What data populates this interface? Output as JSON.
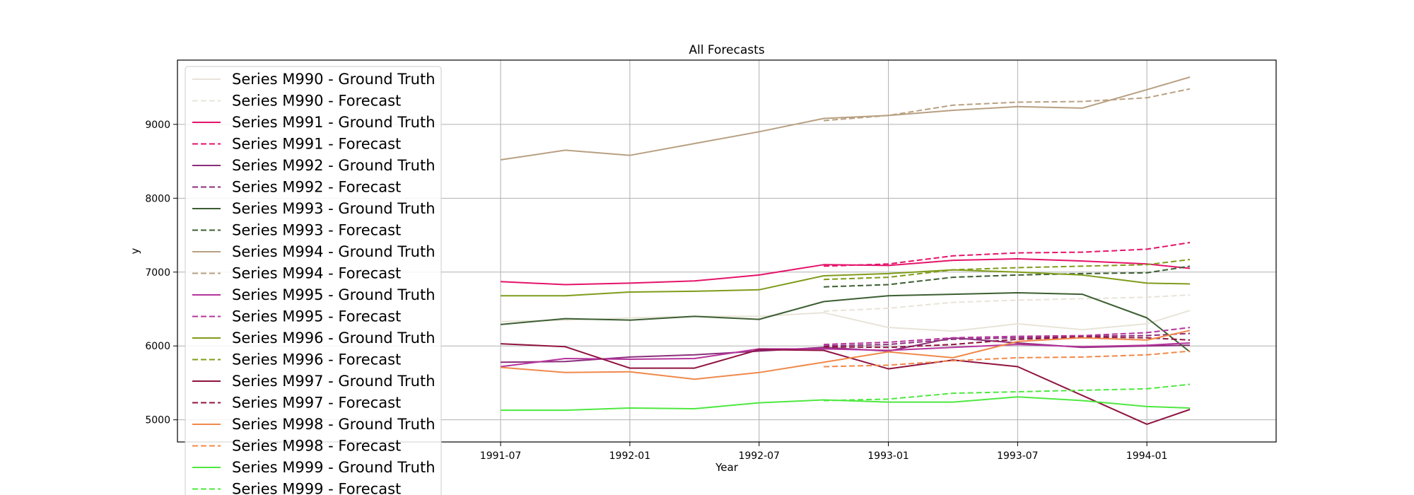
{
  "chart_data": {
    "type": "line",
    "title": "All Forecasts",
    "xlabel": "Year",
    "ylabel": "y",
    "x_ticks": [
      "1991-07",
      "1992-01",
      "1992-07",
      "1993-01",
      "1993-07",
      "1994-01"
    ],
    "y_ticks": [
      5000,
      6000,
      7000,
      8000,
      9000
    ],
    "xlim": [
      "1990-04",
      "1994-07"
    ],
    "ylim": [
      4700,
      9870
    ],
    "grid": true,
    "legend_position": "upper-left",
    "series": [
      {
        "name": "Series M990 - Ground Truth",
        "color": "#e8e4d8",
        "style": "solid",
        "x": [
          "1991-07",
          "1991-10",
          "1992-01",
          "1992-04",
          "1992-07",
          "1992-10",
          "1993-01",
          "1993-04",
          "1993-07",
          "1993-10",
          "1994-01",
          "1994-03"
        ],
        "values": [
          6330,
          6350,
          6380,
          6400,
          6400,
          6450,
          6250,
          6200,
          6300,
          6220,
          6300,
          6480
        ]
      },
      {
        "name": "Series M990 - Forecast",
        "color": "#e8e4d8",
        "style": "dashed",
        "x": [
          "1992-10",
          "1993-01",
          "1993-04",
          "1993-07",
          "1993-10",
          "1994-01",
          "1994-03"
        ],
        "values": [
          6470,
          6510,
          6590,
          6620,
          6640,
          6660,
          6690
        ]
      },
      {
        "name": "Series M991 - Ground Truth",
        "color": "#e5136a",
        "style": "solid",
        "x": [
          "1991-07",
          "1991-10",
          "1992-01",
          "1992-04",
          "1992-07",
          "1992-10",
          "1993-01",
          "1993-04",
          "1993-07",
          "1993-10",
          "1994-01",
          "1994-03"
        ],
        "values": [
          6870,
          6830,
          6850,
          6880,
          6960,
          7100,
          7090,
          7160,
          7180,
          7150,
          7110,
          7050
        ]
      },
      {
        "name": "Series M991 - Forecast",
        "color": "#e5136a",
        "style": "dashed",
        "x": [
          "1992-10",
          "1993-01",
          "1993-04",
          "1993-07",
          "1993-10",
          "1994-01",
          "1994-03"
        ],
        "values": [
          7080,
          7110,
          7220,
          7260,
          7270,
          7310,
          7400
        ]
      },
      {
        "name": "Series M992 - Ground Truth",
        "color": "#8b2e7c",
        "style": "solid",
        "x": [
          "1991-07",
          "1991-10",
          "1992-01",
          "1992-04",
          "1992-07",
          "1992-10",
          "1993-01",
          "1993-04",
          "1993-07",
          "1993-10",
          "1994-01",
          "1994-03"
        ],
        "values": [
          5780,
          5790,
          5850,
          5880,
          5930,
          5980,
          5930,
          6110,
          6040,
          5980,
          6000,
          6010
        ]
      },
      {
        "name": "Series M992 - Forecast",
        "color": "#8b2e7c",
        "style": "dashed",
        "x": [
          "1992-10",
          "1993-01",
          "1993-04",
          "1993-07",
          "1993-10",
          "1994-01",
          "1994-03"
        ],
        "values": [
          6000,
          6020,
          6090,
          6110,
          6130,
          6140,
          6170
        ]
      },
      {
        "name": "Series M993 - Ground Truth",
        "color": "#3c5e32",
        "style": "solid",
        "x": [
          "1991-07",
          "1991-10",
          "1992-01",
          "1992-04",
          "1992-07",
          "1992-10",
          "1993-01",
          "1993-04",
          "1993-07",
          "1993-10",
          "1994-01",
          "1994-03"
        ],
        "values": [
          6290,
          6370,
          6350,
          6400,
          6360,
          6600,
          6680,
          6700,
          6720,
          6700,
          6380,
          5920
        ]
      },
      {
        "name": "Series M993 - Forecast",
        "color": "#3c5e32",
        "style": "dashed",
        "x": [
          "1992-10",
          "1993-01",
          "1993-04",
          "1993-07",
          "1993-10",
          "1994-01",
          "1994-03"
        ],
        "values": [
          6800,
          6830,
          6930,
          6960,
          6980,
          6990,
          7080
        ]
      },
      {
        "name": "Series M994 - Ground Truth",
        "color": "#b8a082",
        "style": "solid",
        "x": [
          "1991-07",
          "1991-10",
          "1992-01",
          "1992-04",
          "1992-07",
          "1992-10",
          "1993-01",
          "1993-04",
          "1993-07",
          "1993-10",
          "1994-01",
          "1994-03"
        ],
        "values": [
          8520,
          8650,
          8580,
          8740,
          8900,
          9080,
          9120,
          9190,
          9240,
          9220,
          9470,
          9640
        ]
      },
      {
        "name": "Series M994 - Forecast",
        "color": "#b8a082",
        "style": "dashed",
        "x": [
          "1992-10",
          "1993-01",
          "1993-04",
          "1993-07",
          "1993-10",
          "1994-01",
          "1994-03"
        ],
        "values": [
          9050,
          9120,
          9260,
          9300,
          9310,
          9360,
          9480
        ]
      },
      {
        "name": "Series M995 - Ground Truth",
        "color": "#b5349c",
        "style": "solid",
        "x": [
          "1991-07",
          "1991-10",
          "1992-01",
          "1992-04",
          "1992-07",
          "1992-10",
          "1993-01",
          "1993-04",
          "1993-07",
          "1993-10",
          "1994-01",
          "1994-03"
        ],
        "values": [
          5720,
          5830,
          5820,
          5830,
          5960,
          5960,
          5940,
          5980,
          6020,
          5990,
          6010,
          6040
        ]
      },
      {
        "name": "Series M995 - Forecast",
        "color": "#b5349c",
        "style": "dashed",
        "x": [
          "1992-10",
          "1993-01",
          "1993-04",
          "1993-07",
          "1993-10",
          "1994-01",
          "1994-03"
        ],
        "values": [
          6020,
          6050,
          6110,
          6130,
          6140,
          6180,
          6250
        ]
      },
      {
        "name": "Series M996 - Ground Truth",
        "color": "#7f9c1b",
        "style": "solid",
        "x": [
          "1991-07",
          "1991-10",
          "1992-01",
          "1992-04",
          "1992-07",
          "1992-10",
          "1993-01",
          "1993-04",
          "1993-07",
          "1993-10",
          "1994-01",
          "1994-03"
        ],
        "values": [
          6680,
          6680,
          6730,
          6740,
          6760,
          6950,
          6980,
          7030,
          7000,
          6960,
          6850,
          6840
        ]
      },
      {
        "name": "Series M996 - Forecast",
        "color": "#7f9c1b",
        "style": "dashed",
        "x": [
          "1992-10",
          "1993-01",
          "1993-04",
          "1993-07",
          "1993-10",
          "1994-01",
          "1994-03"
        ],
        "values": [
          6900,
          6930,
          7030,
          7060,
          7080,
          7100,
          7170
        ]
      },
      {
        "name": "Series M997 - Ground Truth",
        "color": "#8f1340",
        "style": "solid",
        "x": [
          "1991-07",
          "1991-10",
          "1992-01",
          "1992-04",
          "1992-07",
          "1992-10",
          "1993-01",
          "1993-04",
          "1993-07",
          "1993-10",
          "1994-01",
          "1994-03"
        ],
        "values": [
          6030,
          5990,
          5700,
          5700,
          5950,
          5940,
          5690,
          5810,
          5720,
          5330,
          4940,
          5140
        ]
      },
      {
        "name": "Series M997 - Forecast",
        "color": "#8f1340",
        "style": "dashed",
        "x": [
          "1992-10",
          "1993-01",
          "1993-04",
          "1993-07",
          "1993-10",
          "1994-01",
          "1994-03"
        ],
        "values": [
          5990,
          5980,
          6020,
          6090,
          6120,
          6110,
          6080
        ]
      },
      {
        "name": "Series M998 - Ground Truth",
        "color": "#f0894a",
        "style": "solid",
        "x": [
          "1991-07",
          "1991-10",
          "1992-01",
          "1992-04",
          "1992-07",
          "1992-10",
          "1993-01",
          "1993-04",
          "1993-07",
          "1993-10",
          "1994-01",
          "1994-03"
        ],
        "values": [
          5710,
          5640,
          5650,
          5550,
          5640,
          5780,
          5920,
          5840,
          6060,
          6110,
          6080,
          6210
        ]
      },
      {
        "name": "Series M998 - Forecast",
        "color": "#f0894a",
        "style": "dashed",
        "x": [
          "1992-10",
          "1993-01",
          "1993-04",
          "1993-07",
          "1993-10",
          "1994-01",
          "1994-03"
        ],
        "values": [
          5720,
          5740,
          5800,
          5840,
          5850,
          5880,
          5930
        ]
      },
      {
        "name": "Series M999 - Ground Truth",
        "color": "#4ee840",
        "style": "solid",
        "x": [
          "1991-07",
          "1991-10",
          "1992-01",
          "1992-04",
          "1992-07",
          "1992-10",
          "1993-01",
          "1993-04",
          "1993-07",
          "1993-10",
          "1994-01",
          "1994-03"
        ],
        "values": [
          5130,
          5130,
          5160,
          5150,
          5230,
          5270,
          5240,
          5240,
          5310,
          5260,
          5180,
          5160
        ]
      },
      {
        "name": "Series M999 - Forecast",
        "color": "#4ee840",
        "style": "dashed",
        "x": [
          "1992-10",
          "1993-01",
          "1993-04",
          "1993-07",
          "1993-10",
          "1994-01",
          "1994-03"
        ],
        "values": [
          5260,
          5280,
          5360,
          5380,
          5400,
          5420,
          5480
        ]
      }
    ]
  }
}
